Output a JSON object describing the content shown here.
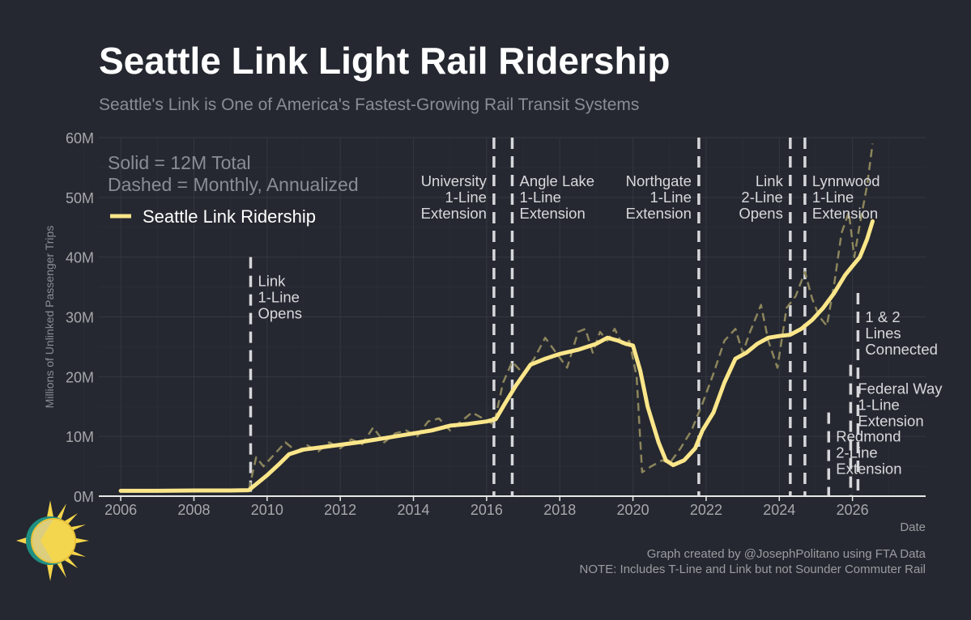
{
  "title": "Seattle Link Light Rail Ridership",
  "subtitle": "Seattle's Link is One of America's Fastest-Growing Rail Transit Systems",
  "credit": "Graph created by @JosephPolitano using FTA Data",
  "note": "NOTE: Includes T-Line and Link but not Sounder Commuter Rail",
  "chart_data": {
    "type": "line",
    "ylabel": "Millions of Unlinked Passenger Trips",
    "xlabel": "Date",
    "xlim": [
      2005.4,
      2028.0
    ],
    "ylim": [
      0,
      60
    ],
    "x_ticks": [
      2006,
      2008,
      2010,
      2012,
      2014,
      2016,
      2018,
      2020,
      2022,
      2024,
      2026
    ],
    "x_tick_labels": [
      "2006",
      "2008",
      "2010",
      "2012",
      "2014",
      "2016",
      "2018",
      "2020",
      "2022",
      "2024",
      "2026"
    ],
    "y_ticks": [
      0,
      10,
      20,
      30,
      40,
      50,
      60
    ],
    "y_tick_labels": [
      "0M",
      "10M",
      "20M",
      "30M",
      "40M",
      "50M",
      "60M"
    ],
    "grid": true,
    "legend_notes": [
      "Solid = 12M Total",
      "Dashed = Monthly, Annualized"
    ],
    "legend_placement": "top-left",
    "colors": {
      "line": "#fbe68a",
      "dashed": "#8c855c",
      "event": "#d6d7db",
      "background": "#252830",
      "grid": "#34373f",
      "axis": "#e8e8e8"
    },
    "series": [
      {
        "name": "Seattle Link Ridership",
        "style": "solid",
        "points": [
          [
            2006.0,
            0.9
          ],
          [
            2007.0,
            0.9
          ],
          [
            2008.0,
            0.95
          ],
          [
            2009.0,
            0.95
          ],
          [
            2009.5,
            1.0
          ],
          [
            2009.7,
            2.0
          ],
          [
            2010.0,
            3.5
          ],
          [
            2010.3,
            5.2
          ],
          [
            2010.6,
            7.0
          ],
          [
            2011.0,
            7.8
          ],
          [
            2011.5,
            8.2
          ],
          [
            2012.0,
            8.6
          ],
          [
            2012.5,
            9.0
          ],
          [
            2013.0,
            9.5
          ],
          [
            2013.5,
            10.0
          ],
          [
            2014.0,
            10.5
          ],
          [
            2014.5,
            11.0
          ],
          [
            2015.0,
            11.8
          ],
          [
            2015.5,
            12.1
          ],
          [
            2016.0,
            12.5
          ],
          [
            2016.25,
            12.9
          ],
          [
            2016.5,
            15.5
          ],
          [
            2016.8,
            18.5
          ],
          [
            2017.2,
            22.0
          ],
          [
            2017.6,
            23.0
          ],
          [
            2018.0,
            23.8
          ],
          [
            2018.5,
            24.5
          ],
          [
            2019.0,
            25.5
          ],
          [
            2019.3,
            26.5
          ],
          [
            2019.6,
            26.0
          ],
          [
            2019.8,
            25.5
          ],
          [
            2020.0,
            25.2
          ],
          [
            2020.2,
            21.0
          ],
          [
            2020.4,
            15.0
          ],
          [
            2020.7,
            9.0
          ],
          [
            2020.9,
            6.0
          ],
          [
            2021.1,
            5.2
          ],
          [
            2021.4,
            6.0
          ],
          [
            2021.7,
            8.0
          ],
          [
            2021.9,
            11.0
          ],
          [
            2022.2,
            14.0
          ],
          [
            2022.5,
            19.0
          ],
          [
            2022.8,
            23.0
          ],
          [
            2023.1,
            24.0
          ],
          [
            2023.4,
            25.5
          ],
          [
            2023.7,
            26.5
          ],
          [
            2024.0,
            26.8
          ],
          [
            2024.3,
            27.0
          ],
          [
            2024.6,
            28.0
          ],
          [
            2024.9,
            29.5
          ],
          [
            2025.2,
            31.5
          ],
          [
            2025.5,
            34.0
          ],
          [
            2025.8,
            37.0
          ],
          [
            2026.0,
            38.5
          ],
          [
            2026.2,
            40.0
          ],
          [
            2026.4,
            43.0
          ],
          [
            2026.55,
            46.0
          ]
        ]
      },
      {
        "style": "dashed",
        "points": [
          [
            2009.5,
            1.0
          ],
          [
            2009.7,
            6.5
          ],
          [
            2009.9,
            5.0
          ],
          [
            2010.2,
            7.0
          ],
          [
            2010.5,
            9.0
          ],
          [
            2010.8,
            7.5
          ],
          [
            2011.1,
            8.5
          ],
          [
            2011.4,
            7.5
          ],
          [
            2011.7,
            9.0
          ],
          [
            2012.0,
            8.0
          ],
          [
            2012.3,
            9.5
          ],
          [
            2012.6,
            8.7
          ],
          [
            2012.9,
            11.5
          ],
          [
            2013.2,
            9.0
          ],
          [
            2013.5,
            10.5
          ],
          [
            2013.8,
            11.0
          ],
          [
            2014.1,
            10.0
          ],
          [
            2014.4,
            12.5
          ],
          [
            2014.7,
            13.0
          ],
          [
            2015.0,
            11.0
          ],
          [
            2015.3,
            12.5
          ],
          [
            2015.6,
            14.0
          ],
          [
            2015.9,
            13.0
          ],
          [
            2016.2,
            12.0
          ],
          [
            2016.45,
            19.0
          ],
          [
            2016.7,
            22.5
          ],
          [
            2017.0,
            20.5
          ],
          [
            2017.3,
            23.0
          ],
          [
            2017.6,
            26.5
          ],
          [
            2017.9,
            24.0
          ],
          [
            2018.2,
            21.5
          ],
          [
            2018.5,
            27.5
          ],
          [
            2018.7,
            28.0
          ],
          [
            2018.9,
            24.0
          ],
          [
            2019.1,
            27.5
          ],
          [
            2019.3,
            26.0
          ],
          [
            2019.5,
            28.0
          ],
          [
            2019.7,
            25.5
          ],
          [
            2019.9,
            26.0
          ],
          [
            2020.1,
            20.0
          ],
          [
            2020.25,
            4.0
          ],
          [
            2020.5,
            5.0
          ],
          [
            2020.8,
            6.0
          ],
          [
            2021.0,
            5.5
          ],
          [
            2021.3,
            8.0
          ],
          [
            2021.6,
            11.0
          ],
          [
            2021.9,
            15.5
          ],
          [
            2022.2,
            20.5
          ],
          [
            2022.5,
            26.0
          ],
          [
            2022.8,
            28.0
          ],
          [
            2023.0,
            24.0
          ],
          [
            2023.2,
            27.5
          ],
          [
            2023.5,
            32.0
          ],
          [
            2023.7,
            26.0
          ],
          [
            2023.95,
            21.5
          ],
          [
            2024.2,
            31.5
          ],
          [
            2024.45,
            33.5
          ],
          [
            2024.7,
            37.5
          ],
          [
            2024.9,
            33.0
          ],
          [
            2025.1,
            30.0
          ],
          [
            2025.3,
            28.5
          ],
          [
            2025.5,
            35.5
          ],
          [
            2025.7,
            44.0
          ],
          [
            2025.9,
            47.5
          ],
          [
            2026.05,
            40.0
          ],
          [
            2026.2,
            45.5
          ],
          [
            2026.4,
            52.0
          ],
          [
            2026.55,
            59.0
          ]
        ]
      }
    ],
    "events": [
      {
        "x": 2009.55,
        "y_top": 40,
        "lines": [
          "Link",
          "1-Line",
          "Opens"
        ],
        "side": "right"
      },
      {
        "x": 2016.2,
        "y_top": 60,
        "lines": [
          "University",
          "1-Line",
          "Extension"
        ],
        "side": "left"
      },
      {
        "x": 2016.7,
        "y_top": 60,
        "lines": [
          "Angle Lake",
          "1-Line",
          "Extension"
        ],
        "side": "right"
      },
      {
        "x": 2021.8,
        "y_top": 60,
        "lines": [
          "Northgate",
          "1-Line",
          "Extension"
        ],
        "side": "left"
      },
      {
        "x": 2024.3,
        "y_top": 60,
        "lines": [
          "Link",
          "2-Line",
          "Opens"
        ],
        "side": "left"
      },
      {
        "x": 2024.7,
        "y_top": 60,
        "lines": [
          "Lynnwood",
          "1-Line",
          "Extension"
        ],
        "side": "right"
      },
      {
        "x": 2025.35,
        "y_top": 14,
        "lines": [
          "Redmond",
          "2-Line",
          "Extension"
        ],
        "side": "right"
      },
      {
        "x": 2025.95,
        "y_top": 22,
        "lines": [
          "Federal Way",
          "1-Line",
          "Extension"
        ],
        "side": "right"
      },
      {
        "x": 2026.15,
        "y_top": 34,
        "lines": [
          "1 & 2",
          "Lines",
          "Connected"
        ],
        "side": "right"
      }
    ]
  }
}
